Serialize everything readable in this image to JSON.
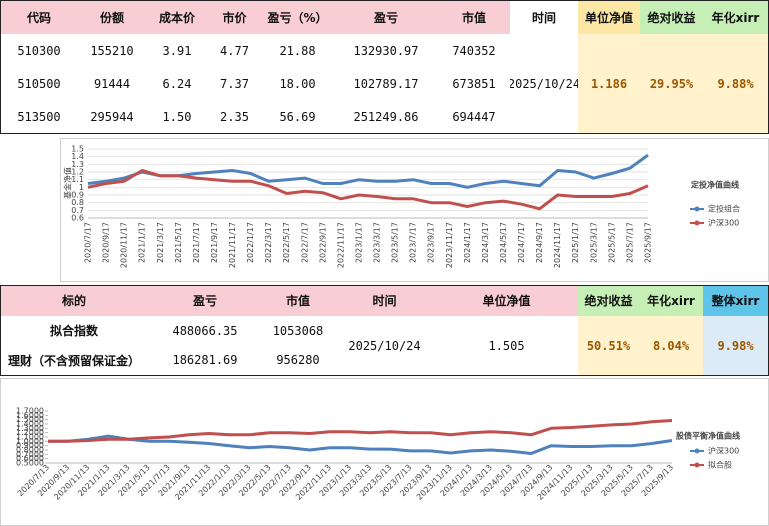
{
  "table1": {
    "headers": [
      "代码",
      "份额",
      "成本价",
      "市价",
      "盈亏（%）",
      "盈亏",
      "市值",
      "时间",
      "单位净值",
      "绝对收益",
      "年化xirr"
    ],
    "rows": [
      [
        "510300",
        "155210",
        "3.91",
        "4.77",
        "21.88",
        "132930.97",
        "740352"
      ],
      [
        "510500",
        "91444",
        "6.24",
        "7.37",
        "18.00",
        "102789.17",
        "673851"
      ],
      [
        "513500",
        "295944",
        "1.50",
        "2.35",
        "56.69",
        "251249.86",
        "694447"
      ]
    ],
    "merged": [
      "2025/10/24",
      "1.186",
      "29.95%",
      "9.88%"
    ]
  },
  "table2": {
    "headers": [
      "标的",
      "盈亏",
      "市值",
      "时间",
      "单位净值",
      "绝对收益",
      "年化xirr",
      "整体xirr"
    ],
    "rows": [
      [
        "拟合指数",
        "488066.35",
        "1053068"
      ],
      [
        "理财（不含预留保证金）",
        "186281.69",
        "956280"
      ]
    ],
    "merged": [
      "2025/10/24",
      "1.505",
      "50.51%",
      "8.04%",
      "9.98%"
    ]
  },
  "chart_data": [
    {
      "type": "line",
      "title": "定投净值曲线",
      "ylabel": "基金净值",
      "legend": "right",
      "grid": true,
      "categories": [
        "2020/7/17",
        "2020/9/17",
        "2020/11/17",
        "2021/1/17",
        "2021/3/17",
        "2021/5/17",
        "2021/7/17",
        "2021/9/17",
        "2021/11/17",
        "2022/1/17",
        "2022/3/17",
        "2022/5/17",
        "2022/7/17",
        "2022/9/17",
        "2022/11/17",
        "2023/1/17",
        "2023/3/17",
        "2023/5/17",
        "2023/7/17",
        "2023/9/17",
        "2023/11/17",
        "2024/1/17",
        "2024/3/17",
        "2024/5/17",
        "2024/7/17",
        "2024/9/17",
        "2024/11/17",
        "2025/1/17",
        "2025/3/17",
        "2025/5/17",
        "2025/7/17",
        "2025/9/17"
      ],
      "series": [
        {
          "name": "定投组合",
          "color": "#4f81bd",
          "values": [
            1.05,
            1.08,
            1.12,
            1.2,
            1.15,
            1.15,
            1.18,
            1.2,
            1.22,
            1.18,
            1.08,
            1.1,
            1.12,
            1.05,
            1.05,
            1.1,
            1.08,
            1.08,
            1.1,
            1.05,
            1.05,
            1.0,
            1.05,
            1.08,
            1.05,
            1.02,
            1.22,
            1.2,
            1.12,
            1.18,
            1.25,
            1.42
          ]
        },
        {
          "name": "沪深300",
          "color": "#c0504d",
          "values": [
            1.0,
            1.05,
            1.08,
            1.22,
            1.15,
            1.15,
            1.12,
            1.1,
            1.08,
            1.08,
            1.02,
            0.92,
            0.95,
            0.93,
            0.85,
            0.9,
            0.88,
            0.85,
            0.85,
            0.8,
            0.8,
            0.75,
            0.8,
            0.82,
            0.78,
            0.72,
            0.9,
            0.88,
            0.88,
            0.88,
            0.92,
            1.02
          ]
        }
      ],
      "ylim": [
        0.6,
        1.5
      ],
      "yticks": [
        0.6,
        0.7,
        0.8,
        0.9,
        1,
        1.1,
        1.2,
        1.3,
        1.4,
        1.5
      ]
    },
    {
      "type": "line",
      "title": "股债平衡净值曲线",
      "legend": "right",
      "grid": false,
      "categories": [
        "2020/7/13",
        "2020/9/13",
        "2020/11/13",
        "2021/1/13",
        "2021/3/13",
        "2021/5/13",
        "2021/7/13",
        "2021/9/13",
        "2021/11/13",
        "2022/1/13",
        "2022/3/13",
        "2022/5/13",
        "2022/7/13",
        "2022/9/13",
        "2022/11/13",
        "2023/1/13",
        "2023/3/13",
        "2023/5/13",
        "2023/7/13",
        "2023/9/13",
        "2023/11/13",
        "2024/1/13",
        "2024/3/13",
        "2024/5/13",
        "2024/7/13",
        "2024/9/13",
        "2024/11/13",
        "2025/1/13",
        "2025/3/13",
        "2025/5/13",
        "2025/7/13",
        "2025/9/13"
      ],
      "series": [
        {
          "name": "沪深300",
          "color": "#4f81bd",
          "values": [
            1.0,
            1.0,
            1.05,
            1.12,
            1.05,
            1.0,
            1.0,
            0.98,
            0.95,
            0.9,
            0.85,
            0.88,
            0.85,
            0.8,
            0.85,
            0.85,
            0.82,
            0.82,
            0.78,
            0.78,
            0.73,
            0.78,
            0.8,
            0.77,
            0.72,
            0.9,
            0.88,
            0.88,
            0.9,
            0.9,
            0.95,
            1.02
          ]
        },
        {
          "name": "拟合股",
          "color": "#c0504d",
          "values": [
            1.0,
            1.0,
            1.02,
            1.05,
            1.05,
            1.08,
            1.1,
            1.15,
            1.18,
            1.15,
            1.15,
            1.2,
            1.2,
            1.18,
            1.22,
            1.22,
            1.2,
            1.22,
            1.2,
            1.2,
            1.15,
            1.2,
            1.22,
            1.2,
            1.15,
            1.3,
            1.32,
            1.35,
            1.38,
            1.4,
            1.45,
            1.48
          ]
        }
      ],
      "ylim": [
        0.5,
        1.7
      ],
      "yticks": [
        {
          "value": 0.5,
          "label": "0.5000"
        },
        {
          "value": 0.6,
          "label": "0.6000"
        },
        {
          "value": 0.7,
          "label": "0.7000"
        },
        {
          "value": 0.8,
          "label": "0.8000"
        },
        {
          "value": 0.9,
          "label": "0.9000"
        },
        {
          "value": 1.0,
          "label": "1.0000"
        },
        {
          "value": 1.1,
          "label": "1.1000"
        },
        {
          "value": 1.2,
          "label": "1.2000"
        },
        {
          "value": 1.3,
          "label": "1.3000"
        },
        {
          "value": 1.4,
          "label": "1.4000"
        },
        {
          "value": 1.5,
          "label": "1.5000"
        },
        {
          "value": 1.6,
          "label": "1.6000"
        },
        {
          "value": 1.7,
          "label": "1.7000"
        }
      ]
    }
  ]
}
